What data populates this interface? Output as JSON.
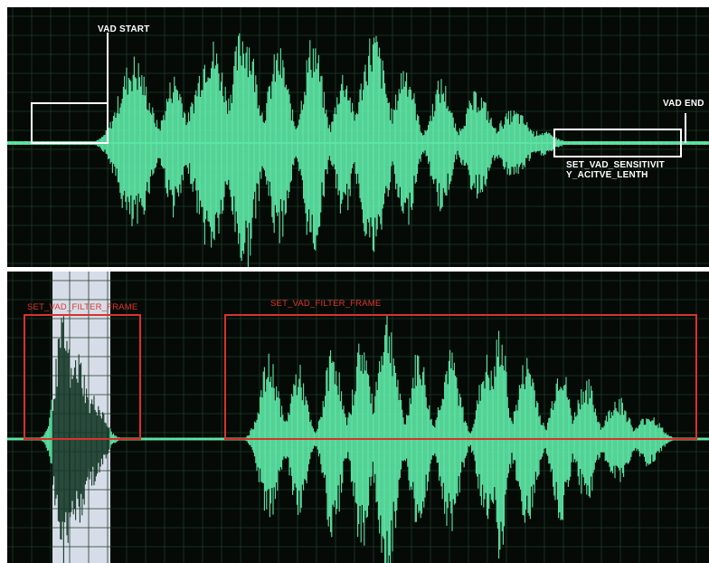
{
  "colors": {
    "background": "#050a07",
    "grid": "#1f3a26",
    "waveform": "#5ee8a6",
    "waveform_dark": "#2c7a55",
    "white_box": "#ffffff",
    "red_box": "#d8322b",
    "highlight": "#d6dde8"
  },
  "top_panel": {
    "vad_start_label": "VAD START",
    "vad_end_label": "VAD END",
    "sensitivity_label": "SET_VAD_SENSITIVIT\nY_ACITVE_LENTH"
  },
  "bottom_panel": {
    "filter_label_left": "SET_VAD_FILTER_FRAME",
    "filter_label_right": "SET_VAD_FILTER_FRAME"
  }
}
